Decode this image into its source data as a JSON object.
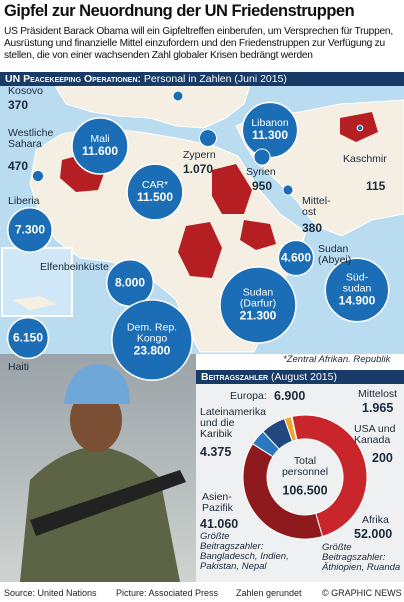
{
  "header": {
    "title": "Gipfel zur Neuordnung der UN Friedenstruppen",
    "subtitle": "US Präsident Barack Obama will ein Gipfeltreffen einberufen, um Versprechen für Truppen, Ausrüstung und finanzielle Mittel einzufordern und den Friedenstruppen zur Verfügung zu stellen, die von einer wachsenden Zahl globaler Krisen bedrängt werden"
  },
  "chart_data": [
    {
      "type": "bubble-map",
      "title": "UN Peacekeeping Operationen:",
      "subtitle": "Personal in Zahlen (Juni 2015)",
      "categories": [
        "Kosovo",
        "Westliche\nSahara",
        "Liberia",
        "Elfenbeinküste",
        "Haiti",
        "Mali",
        "CAR*",
        "Dem. Rep.\nKongo",
        "Zypern",
        "Libanon",
        "Syrien",
        "Kaschmir",
        "Mittel-\nost",
        "Sudan\n(Abyei)",
        "Sudan\n(Darfur)",
        "Süd-\nsudan"
      ],
      "values": [
        370,
        470,
        7300,
        8000,
        6150,
        11600,
        11500,
        23800,
        1070,
        11300,
        950,
        115,
        380,
        4600,
        21300,
        14900
      ],
      "value_labels": [
        "370",
        "470",
        "7.300",
        "8.000",
        "6.150",
        "11.600",
        "11.500",
        "23.800",
        "1.070",
        "11.300",
        "950",
        "115",
        "380",
        "4.600",
        "21.300",
        "14.900"
      ],
      "color": "#1b6db5",
      "note": "*Zentral Afrikan. Republik"
    },
    {
      "type": "donut",
      "title": "Beitragszahler",
      "subtitle": "(August 2015)",
      "categories": [
        "Mittelost",
        "USA und\nKanada",
        "Afrika",
        "Asien-\nPazifik",
        "Lateinamerika\nund die\nKaribik",
        "Europa:"
      ],
      "values": [
        1965,
        200,
        52000,
        41060,
        4375,
        6900
      ],
      "value_labels": [
        "1.965",
        "200",
        "52.000",
        "41.060",
        "4.375",
        "6.900"
      ],
      "colors": [
        "#f0a526",
        "#ecd96a",
        "#c8262b",
        "#8f1a1e",
        "#2a79c0",
        "#22467e"
      ],
      "total_title": "Total\npersonnel",
      "total": {
        "value": 106500,
        "label": "106.500"
      },
      "annotations": [
        "Größte\nBeitragszahler:\nBangladesch, Indien,\nPakistan, Nepal",
        "Größte\nBeitragszahler:\nÄthiopien, Ruanda"
      ]
    }
  ],
  "footer": {
    "source": "Source: United Nations",
    "picture": "Picture: Associated Press",
    "note": "Zahlen gerundet",
    "credit": "© GRAPHIC NEWS"
  }
}
